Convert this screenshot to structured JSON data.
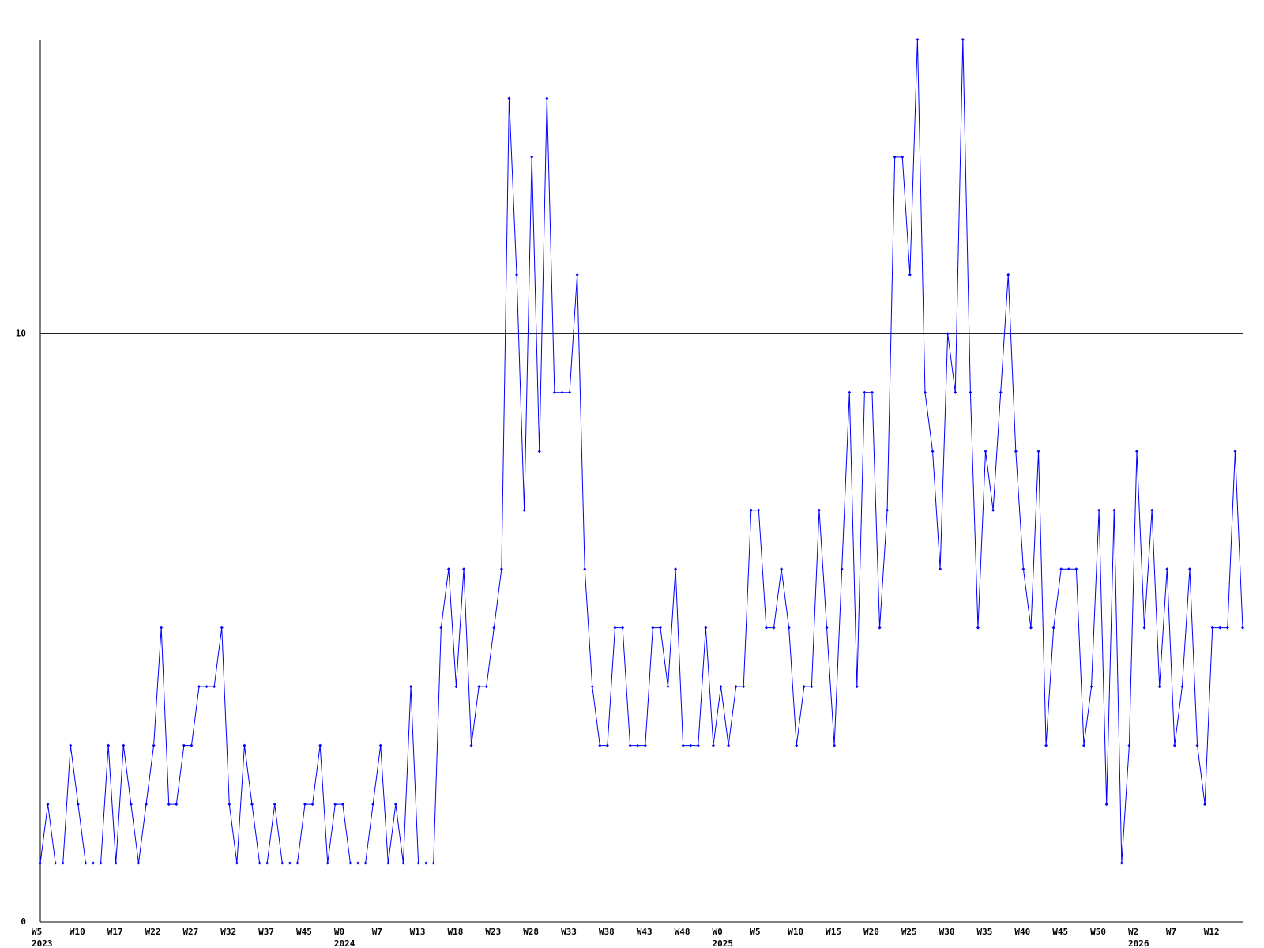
{
  "chart_data": {
    "type": "line",
    "categories": [
      "W5",
      null,
      null,
      null,
      null,
      "W10",
      null,
      null,
      null,
      null,
      "W17",
      null,
      null,
      null,
      null,
      "W22",
      null,
      null,
      null,
      null,
      "W27",
      null,
      null,
      null,
      null,
      "W32",
      null,
      null,
      null,
      null,
      "W37",
      null,
      null,
      null,
      null,
      "W45",
      null,
      null,
      null,
      null,
      "W0",
      null,
      null,
      null,
      null,
      "W7",
      null,
      null,
      null,
      null,
      "W13",
      null,
      null,
      null,
      null,
      "W18",
      null,
      null,
      null,
      null,
      "W23",
      null,
      null,
      null,
      null,
      "W28",
      null,
      null,
      null,
      null,
      "W33",
      null,
      null,
      null,
      null,
      "W38",
      null,
      null,
      null,
      null,
      "W43",
      null,
      null,
      null,
      null,
      "W48",
      null,
      null,
      null,
      null,
      "W0",
      null,
      null,
      null,
      null,
      "W5",
      null,
      null,
      null,
      null,
      "W10",
      null,
      null,
      null,
      null,
      "W15",
      null,
      null,
      null,
      null,
      "W20",
      null,
      null,
      null,
      null,
      "W25",
      null,
      null,
      null,
      null,
      "W30",
      null,
      null,
      null,
      null,
      "W35",
      null,
      null,
      null,
      null,
      "W40",
      null,
      null,
      null,
      null,
      "W45",
      null,
      null,
      null,
      null,
      "W50",
      null,
      null,
      null,
      null,
      "W2",
      null,
      null,
      null,
      null,
      "W7",
      null,
      null,
      null,
      null,
      "W12",
      null,
      null,
      null,
      null
    ],
    "year_labels": [
      "2023",
      null,
      null,
      null,
      null,
      null,
      null,
      null,
      null,
      null,
      null,
      null,
      null,
      null,
      null,
      null,
      null,
      null,
      null,
      null,
      null,
      null,
      null,
      null,
      null,
      null,
      null,
      null,
      null,
      null,
      null,
      null,
      null,
      null,
      null,
      null,
      null,
      null,
      null,
      null,
      "2024",
      null,
      null,
      null,
      null,
      null,
      null,
      null,
      null,
      null,
      null,
      null,
      null,
      null,
      null,
      null,
      null,
      null,
      null,
      null,
      null,
      null,
      null,
      null,
      null,
      null,
      null,
      null,
      null,
      null,
      null,
      null,
      null,
      null,
      null,
      null,
      null,
      null,
      null,
      null,
      null,
      null,
      null,
      null,
      null,
      null,
      null,
      null,
      null,
      null,
      "2025",
      null,
      null,
      null,
      null,
      null,
      null,
      null,
      null,
      null,
      null,
      null,
      null,
      null,
      null,
      null,
      null,
      null,
      null,
      null,
      null,
      null,
      null,
      null,
      null,
      null,
      null,
      null,
      null,
      null,
      null,
      null,
      null,
      null,
      null,
      null,
      null,
      null,
      null,
      null,
      null,
      null,
      null,
      null,
      null,
      null,
      null,
      null,
      null,
      null,
      null,
      null,
      null,
      null,
      null,
      "2026",
      null,
      null,
      null,
      null,
      null,
      null,
      null,
      null,
      null,
      null,
      null,
      null,
      null,
      null
    ],
    "values": [
      1,
      2,
      1,
      1,
      3,
      2,
      1,
      1,
      1,
      3,
      1,
      3,
      2,
      1,
      2,
      3,
      5,
      2,
      2,
      3,
      3,
      4,
      4,
      4,
      5,
      2,
      1,
      3,
      2,
      1,
      1,
      2,
      1,
      1,
      1,
      2,
      2,
      3,
      1,
      2,
      2,
      1,
      1,
      1,
      2,
      3,
      1,
      2,
      1,
      4,
      1,
      1,
      1,
      5,
      6,
      4,
      6,
      3,
      4,
      4,
      5,
      6,
      14,
      11,
      7,
      13,
      8,
      14,
      9,
      9,
      9,
      11,
      6,
      4,
      3,
      3,
      5,
      5,
      3,
      3,
      3,
      5,
      5,
      4,
      6,
      3,
      3,
      3,
      5,
      3,
      4,
      3,
      4,
      4,
      7,
      7,
      5,
      5,
      6,
      5,
      3,
      4,
      4,
      7,
      5,
      3,
      6,
      9,
      4,
      9,
      9,
      5,
      7,
      13,
      13,
      11,
      15,
      9,
      8,
      6,
      10,
      9,
      15,
      9,
      5,
      8,
      7,
      9,
      11,
      8,
      6,
      5,
      8,
      3,
      5,
      6,
      6,
      6,
      3,
      4,
      7,
      2,
      7,
      1,
      3,
      8,
      5,
      7,
      4,
      6,
      3,
      4,
      6,
      3,
      2,
      5,
      5,
      5,
      8,
      5
    ],
    "color": "#0000ff",
    "ylim": [
      0,
      15
    ],
    "yticks": [
      0,
      10
    ],
    "grid": true
  }
}
